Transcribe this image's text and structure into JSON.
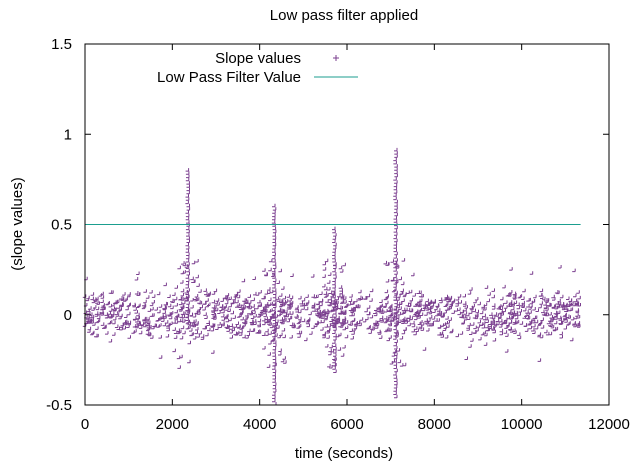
{
  "chart_data": {
    "type": "scatter",
    "title": "Low pass filter applied",
    "xlabel": "time (seconds)",
    "ylabel": "(slope values)",
    "xlim": [
      0,
      12000
    ],
    "ylim": [
      -0.5,
      1.5
    ],
    "xticks": [
      0,
      2000,
      4000,
      6000,
      8000,
      10000,
      12000
    ],
    "yticks": [
      -0.5,
      0,
      0.5,
      1,
      1.5
    ],
    "ytick_labels": [
      "-0.5",
      "0",
      "0.5",
      "1",
      "1.5"
    ],
    "grid": false,
    "legend_position": "top-left",
    "series": [
      {
        "name": "Slope values",
        "kind": "points",
        "marker": "+",
        "color": "#7b3f8f",
        "x_range": [
          0,
          11350
        ],
        "typical_range": [
          -0.15,
          0.15
        ],
        "spikes": [
          {
            "x": 2380,
            "min": -0.05,
            "max": 0.8
          },
          {
            "x": 4360,
            "min": -0.5,
            "max": 0.61
          },
          {
            "x": 5740,
            "min": -0.32,
            "max": 0.49
          },
          {
            "x": 7140,
            "min": -0.46,
            "max": 0.91
          }
        ]
      },
      {
        "name": "Low Pass Filter Value",
        "kind": "line",
        "color": "#1b9e8f",
        "x": [
          0,
          11350
        ],
        "y": [
          0.5,
          0.5
        ]
      }
    ]
  }
}
